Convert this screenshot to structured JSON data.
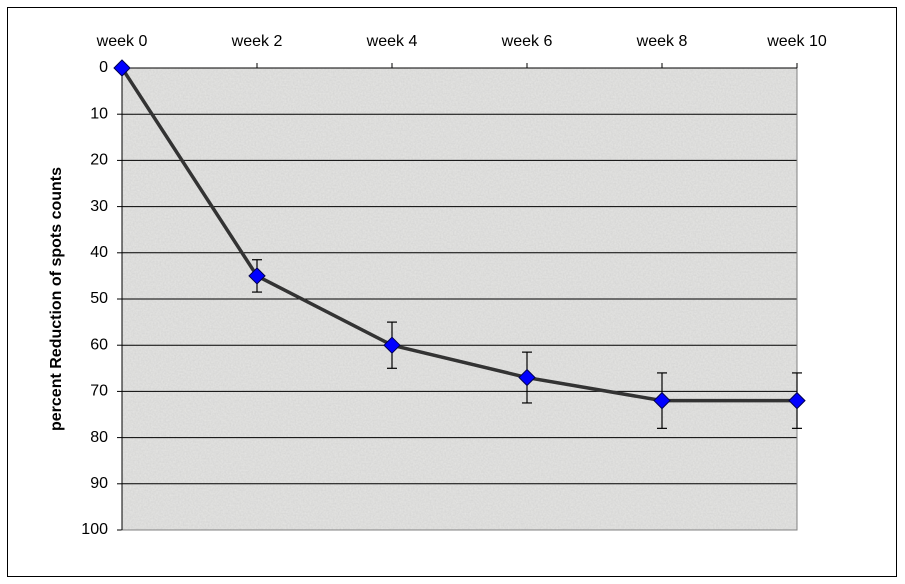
{
  "chart_data": {
    "type": "line",
    "y_label": "percent Reduction of spots counts",
    "categories": [
      "week 0",
      "week 2",
      "week 4",
      "week 6",
      "week 8",
      "week 10"
    ],
    "series": [
      {
        "name": "Reduction",
        "color": "#0000ff",
        "line_color": "#333333",
        "values": [
          0,
          45,
          60,
          67,
          72,
          72
        ],
        "errors": [
          null,
          3.5,
          5,
          5.5,
          6,
          6
        ]
      }
    ],
    "ylim": [
      0,
      100
    ],
    "yticks": [
      0,
      10,
      20,
      30,
      40,
      50,
      60,
      70,
      80,
      90,
      100
    ],
    "y_reversed": true,
    "x_axis_position": "top",
    "grid": true
  }
}
